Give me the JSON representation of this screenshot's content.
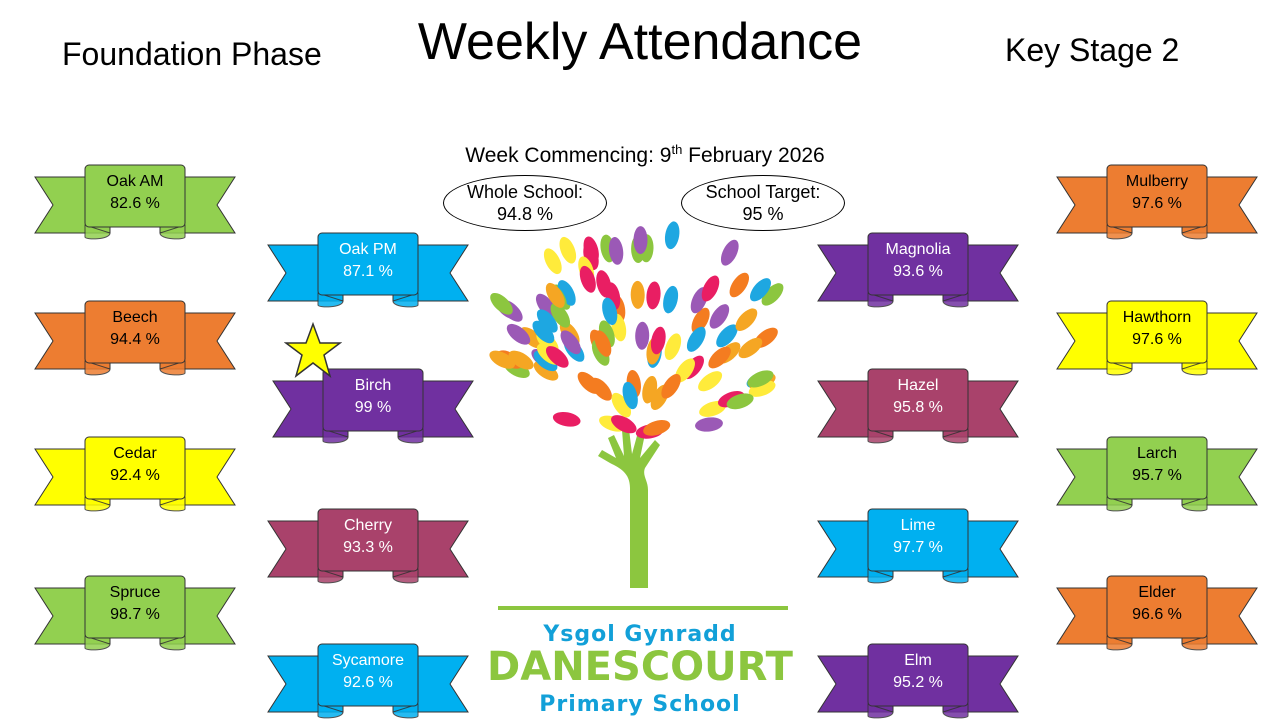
{
  "header": {
    "title": "Weekly Attendance",
    "left_phase": "Foundation Phase",
    "right_phase": "Key Stage 2"
  },
  "week": {
    "label": "Week Commencing: 9",
    "suffix": "th",
    "date": " February 2026"
  },
  "summary": {
    "whole_school_label": "Whole School:",
    "whole_school_value": "94.8 %",
    "target_label": "School Target:",
    "target_value": "95 %"
  },
  "classes": {
    "oak_am": {
      "name": "Oak AM",
      "value": "82.6 %",
      "color": "#92d050"
    },
    "beech": {
      "name": "Beech",
      "value": "94.4 %",
      "color": "#ed7d31"
    },
    "cedar": {
      "name": "Cedar",
      "value": "92.4 %",
      "color": "#ffff00"
    },
    "spruce": {
      "name": "Spruce",
      "value": "98.7 %",
      "color": "#92d050"
    },
    "oak_pm": {
      "name": "Oak PM",
      "value": "87.1 %",
      "color": "#00b0f0"
    },
    "birch": {
      "name": "Birch",
      "value": "99 %",
      "color": "#7030a0"
    },
    "cherry": {
      "name": "Cherry",
      "value": "93.3 %",
      "color": "#a9426b"
    },
    "sycamore": {
      "name": "Sycamore",
      "value": "92.6 %",
      "color": "#00b0f0"
    },
    "magnolia": {
      "name": "Magnolia",
      "value": "93.6 %",
      "color": "#7030a0"
    },
    "hazel": {
      "name": "Hazel",
      "value": "95.8 %",
      "color": "#a9426b"
    },
    "lime": {
      "name": "Lime",
      "value": "97.7 %",
      "color": "#00b0f0"
    },
    "elm": {
      "name": "Elm",
      "value": "95.2 %",
      "color": "#7030a0"
    },
    "mulberry": {
      "name": "Mulberry",
      "value": "97.6 %",
      "color": "#ed7d31"
    },
    "hawthorn": {
      "name": "Hawthorn",
      "value": "97.6 %",
      "color": "#ffff00"
    },
    "larch": {
      "name": "Larch",
      "value": "95.7 %",
      "color": "#92d050"
    },
    "elder": {
      "name": "Elder",
      "value": "96.6 %",
      "color": "#ed7d31"
    }
  },
  "logo": {
    "line1": "Ysgol Gynradd",
    "line2": "DANESCOURT",
    "line3": "Primary School"
  },
  "colors": {
    "star": "#ffff00",
    "trunk": "#8cc63f",
    "logo_blue": "#12a0d8"
  }
}
